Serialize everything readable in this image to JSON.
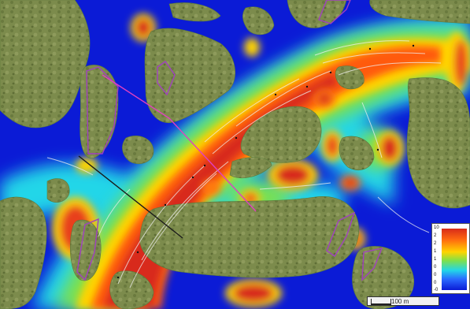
{
  "map": {
    "scale_label": "100 m",
    "legend": {
      "ticks": [
        "10",
        "2",
        "2",
        "1",
        "1",
        "0",
        "0",
        "0",
        "-0"
      ]
    },
    "colors": {
      "water_low": "#0b1bd6",
      "water_mid": "#22d6e8",
      "water_high": "#d82a1a",
      "land": "#7a8a4a",
      "protected_area": "#a040c0",
      "transect_line": "#1a1a1a",
      "boundary_line": "#e040c0"
    }
  }
}
